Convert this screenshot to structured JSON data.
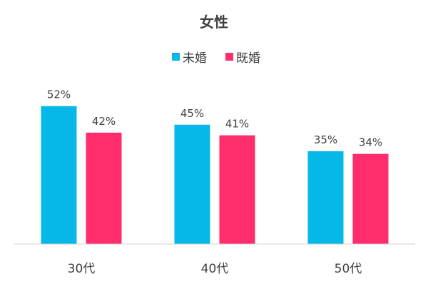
{
  "chart_data": {
    "type": "bar",
    "title": "女性",
    "categories": [
      "30代",
      "40代",
      "50代"
    ],
    "series": [
      {
        "name": "未婚",
        "values": [
          52,
          45,
          35
        ],
        "color": "#05B8E8",
        "labels": [
          "52%",
          "45%",
          "35%"
        ]
      },
      {
        "name": "既婚",
        "values": [
          42,
          41,
          34
        ],
        "color": "#FF2D6B",
        "labels": [
          "42%",
          "41%",
          "34%"
        ]
      }
    ],
    "ylim": [
      0,
      60
    ],
    "grid": false,
    "legend": "top",
    "unit": "%"
  }
}
